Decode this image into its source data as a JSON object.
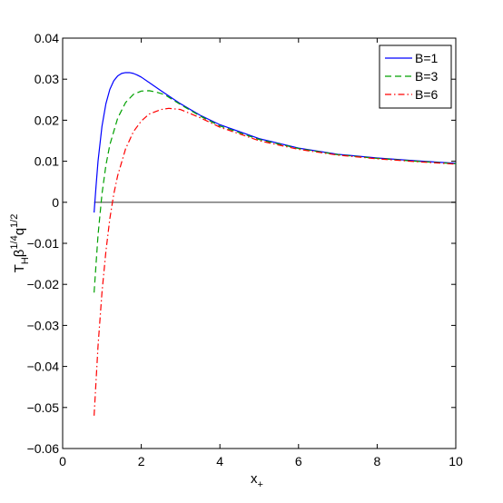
{
  "chart_data": {
    "type": "line",
    "title": "",
    "xlabel": "x",
    "xlabel_sub": "+",
    "ylabel_parts": {
      "T": "T",
      "H": "H",
      "beta": "β",
      "beta_exp": "1/4",
      "q": "q",
      "q_exp": "1/2"
    },
    "xlim": [
      0,
      10
    ],
    "ylim": [
      -0.06,
      0.04
    ],
    "xticks": [
      0,
      2,
      4,
      6,
      8,
      10
    ],
    "xtick_labels": [
      "0",
      "2",
      "4",
      "6",
      "8",
      "10"
    ],
    "yticks": [
      -0.06,
      -0.05,
      -0.04,
      -0.03,
      -0.02,
      -0.01,
      0,
      0.01,
      0.02,
      0.03,
      0.04
    ],
    "ytick_labels": [
      "−0.06",
      "−0.05",
      "−0.04",
      "−0.03",
      "−0.02",
      "−0.01",
      "0",
      "0.01",
      "0.02",
      "0.03",
      "0.04"
    ],
    "grid": false,
    "legend_position": "top-right",
    "zero_line": true,
    "series": [
      {
        "name": "B=1",
        "color": "#0000ff",
        "dash": "solid",
        "x": [
          0.8,
          0.85,
          0.9,
          1.0,
          1.1,
          1.2,
          1.3,
          1.4,
          1.5,
          1.6,
          1.7,
          1.8,
          1.9,
          2.0,
          2.2,
          2.5,
          3.0,
          3.5,
          4.0,
          5.0,
          6.0,
          7.0,
          8.0,
          9.0,
          10.0
        ],
        "y": [
          -0.0025,
          0.004,
          0.01,
          0.0185,
          0.024,
          0.0275,
          0.0296,
          0.0308,
          0.0314,
          0.0316,
          0.0316,
          0.0314,
          0.031,
          0.0305,
          0.0292,
          0.0272,
          0.024,
          0.0212,
          0.0189,
          0.0155,
          0.0132,
          0.0117,
          0.0108,
          0.0101,
          0.0095
        ]
      },
      {
        "name": "B=3",
        "color": "#00a000",
        "dash": "dashed",
        "x": [
          0.8,
          0.9,
          1.0,
          1.1,
          1.2,
          1.4,
          1.6,
          1.8,
          2.0,
          2.2,
          2.4,
          2.6,
          3.0,
          3.5,
          4.0,
          5.0,
          6.0,
          7.0,
          8.0,
          9.0,
          10.0
        ],
        "y": [
          -0.022,
          -0.008,
          0.002,
          0.009,
          0.014,
          0.0205,
          0.0243,
          0.0263,
          0.0271,
          0.0272,
          0.0268,
          0.0262,
          0.0238,
          0.021,
          0.0186,
          0.0153,
          0.0131,
          0.0116,
          0.0107,
          0.01,
          0.0094
        ]
      },
      {
        "name": "B=6",
        "color": "#ff0000",
        "dash": "dashdot",
        "x": [
          0.8,
          0.9,
          1.0,
          1.1,
          1.2,
          1.3,
          1.4,
          1.6,
          1.8,
          2.0,
          2.2,
          2.5,
          2.7,
          3.0,
          3.5,
          4.0,
          5.0,
          6.0,
          7.0,
          8.0,
          9.0,
          10.0
        ],
        "y": [
          -0.052,
          -0.035,
          -0.022,
          -0.012,
          -0.004,
          0.002,
          0.0065,
          0.013,
          0.0172,
          0.0198,
          0.0215,
          0.0226,
          0.0229,
          0.0226,
          0.0206,
          0.0183,
          0.015,
          0.0129,
          0.0115,
          0.0106,
          0.0099,
          0.0093
        ]
      }
    ]
  }
}
